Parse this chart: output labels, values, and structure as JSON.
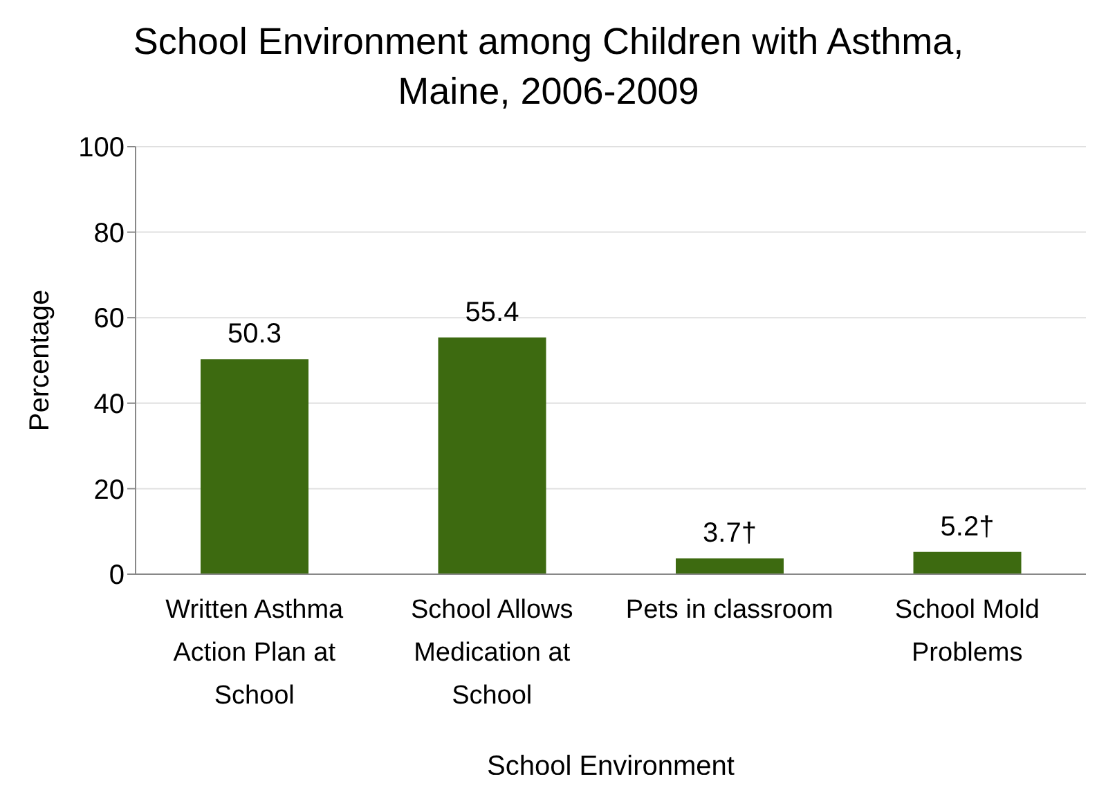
{
  "chart_data": {
    "type": "bar",
    "title": "School Environment among Children with Asthma, Maine, 2006-2009",
    "xlabel": "School Environment",
    "ylabel": "Percentage",
    "categories": [
      "Written Asthma Action Plan at School",
      "School Allows Medication at School",
      "Pets in classroom",
      "School Mold Problems"
    ],
    "values": [
      50.3,
      55.4,
      3.7,
      5.2
    ],
    "value_labels": [
      "50.3",
      "55.4",
      "3.7†",
      "5.2†"
    ],
    "color": "#3d6a10",
    "ylim": [
      0,
      100
    ],
    "yticks": [
      0,
      20,
      40,
      60,
      80,
      100
    ],
    "grid": "y"
  }
}
